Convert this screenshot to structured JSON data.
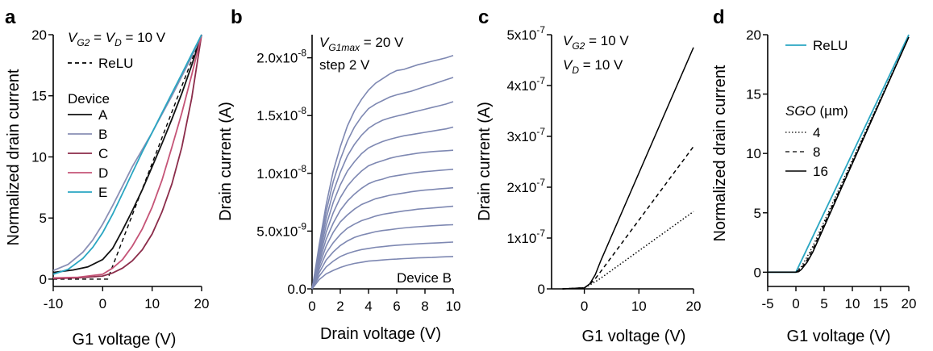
{
  "chart_data": [
    {
      "panel": "a",
      "type": "line",
      "xlabel": "G1 voltage (V)",
      "ylabel": "Normalized drain current",
      "xlim": [
        -10,
        20
      ],
      "ylim": [
        -0.6,
        20
      ],
      "xticks": [
        -10,
        0,
        10,
        20
      ],
      "yticks": [
        0,
        5,
        10,
        15,
        20
      ],
      "xtick_labels": [
        "-10",
        "0",
        "10",
        "20"
      ],
      "ytick_labels": [
        "0",
        "5",
        "10",
        "15",
        "20"
      ],
      "annotation": {
        "sym1": "V",
        "sub1": "G2",
        "eq1": " = ",
        "sym2": "V",
        "sub2": "D",
        "eq2": " = 10 V"
      },
      "legend_title": "Device",
      "grid": false,
      "series": [
        {
          "name": "ReLU",
          "color": "#000000",
          "dash": "5,4",
          "x": [
            -10,
            0,
            1,
            20
          ],
          "y": [
            0,
            0,
            0,
            20
          ]
        },
        {
          "name": "A",
          "color": "#111111",
          "x": [
            -10,
            -6,
            -3,
            0,
            2,
            4,
            6,
            8,
            10,
            12,
            14,
            16,
            18,
            20
          ],
          "y": [
            0.55,
            0.75,
            1.0,
            1.6,
            2.5,
            4.0,
            5.6,
            7.3,
            9.2,
            11.1,
            13.1,
            15.2,
            17.5,
            20
          ]
        },
        {
          "name": "B",
          "color": "#8a8fb5",
          "x": [
            -10,
            -7,
            -4,
            -2,
            0,
            2,
            4,
            6,
            8,
            10,
            12,
            14,
            16,
            18,
            20
          ],
          "y": [
            0.7,
            1.2,
            2.2,
            3.2,
            4.5,
            6.0,
            7.6,
            9.2,
            10.6,
            12.0,
            13.5,
            15.0,
            16.6,
            18.2,
            20
          ]
        },
        {
          "name": "C",
          "color": "#8b2c4a",
          "x": [
            -10,
            -5,
            0,
            2,
            4,
            6,
            8,
            10,
            12,
            14,
            16,
            18,
            20
          ],
          "y": [
            0.05,
            0.1,
            0.25,
            0.5,
            0.9,
            1.5,
            2.4,
            3.7,
            5.5,
            7.8,
            10.8,
            14.8,
            20
          ]
        },
        {
          "name": "D",
          "color": "#c55477",
          "x": [
            -10,
            -5,
            0,
            2,
            4,
            6,
            8,
            10,
            12,
            14,
            16,
            18,
            20
          ],
          "y": [
            0.1,
            0.15,
            0.4,
            0.9,
            1.6,
            2.7,
            4.1,
            5.9,
            8.1,
            10.8,
            13.6,
            16.7,
            20
          ]
        },
        {
          "name": "E",
          "color": "#2aa6c2",
          "x": [
            -10,
            -7,
            -4,
            -2,
            0,
            2,
            4,
            6,
            8,
            10,
            12,
            14,
            16,
            18,
            20
          ],
          "y": [
            0.4,
            0.8,
            1.7,
            2.6,
            3.8,
            5.3,
            7.0,
            8.7,
            10.4,
            12.0,
            13.6,
            15.2,
            16.8,
            18.4,
            20
          ]
        }
      ]
    },
    {
      "panel": "b",
      "type": "line",
      "xlabel": "Drain voltage (V)",
      "ylabel": "Drain current (A)",
      "xlim": [
        0,
        10
      ],
      "ylim": [
        0,
        2.2e-08
      ],
      "xticks": [
        0,
        2,
        4,
        6,
        8,
        10
      ],
      "yticks": [
        0,
        5e-09,
        1e-08,
        1.5e-08,
        2e-08
      ],
      "xtick_labels": [
        "0",
        "2",
        "4",
        "6",
        "8",
        "10"
      ],
      "ytick_labels": [
        "0.0",
        "5.0x10",
        "1.0x10",
        "1.5x10",
        "2.0x10"
      ],
      "ytick_exponents": [
        "",
        "-9",
        "-8",
        "-8",
        "-8"
      ],
      "annotation": {
        "sym": "V",
        "sub": "G1max",
        "rest": " = 20 V",
        "line2": "step 2 V"
      },
      "device_label": "Device B",
      "line_color": "#7e88b2",
      "grid": false,
      "x": [
        0,
        0.25,
        0.5,
        1,
        1.5,
        2,
        2.5,
        3,
        3.5,
        4,
        4.5,
        5,
        5.5,
        6,
        6.5,
        7,
        7.5,
        8,
        8.5,
        9,
        9.5,
        10
      ],
      "series": [
        {
          "values": [
            0,
            4e-10,
            8e-10,
            1.3e-09,
            1.6e-09,
            1.85e-09,
            2.05e-09,
            2.2e-09,
            2.3e-09,
            2.4e-09,
            2.45e-09,
            2.5e-09,
            2.55e-09,
            2.58e-09,
            2.62e-09,
            2.65e-09,
            2.68e-09,
            2.7e-09,
            2.72e-09,
            2.75e-09,
            2.78e-09,
            2.8e-09
          ]
        },
        {
          "values": [
            0,
            5.5e-10,
            1.1e-09,
            1.9e-09,
            2.4e-09,
            2.8e-09,
            3.05e-09,
            3.25e-09,
            3.4e-09,
            3.5e-09,
            3.6e-09,
            3.65e-09,
            3.72e-09,
            3.78e-09,
            3.82e-09,
            3.86e-09,
            3.9e-09,
            3.93e-09,
            3.96e-09,
            3.99e-09,
            4.02e-09,
            4.05e-09
          ]
        },
        {
          "values": [
            0,
            7e-10,
            1.4e-09,
            2.5e-09,
            3.2e-09,
            3.75e-09,
            4.15e-09,
            4.45e-09,
            4.65e-09,
            4.8e-09,
            4.95e-09,
            5.05e-09,
            5.12e-09,
            5.2e-09,
            5.27e-09,
            5.33e-09,
            5.38e-09,
            5.42e-09,
            5.46e-09,
            5.5e-09,
            5.53e-09,
            5.55e-09
          ]
        },
        {
          "values": [
            0,
            8.5e-10,
            1.7e-09,
            3.1e-09,
            4e-09,
            4.7e-09,
            5.25e-09,
            5.6e-09,
            5.9e-09,
            6.1e-09,
            6.3e-09,
            6.45e-09,
            6.55e-09,
            6.65e-09,
            6.75e-09,
            6.82e-09,
            6.9e-09,
            6.95e-09,
            7e-09,
            7.05e-09,
            7.1e-09,
            7.15e-09
          ]
        },
        {
          "values": [
            0,
            1e-09,
            2e-09,
            3.7e-09,
            4.9e-09,
            5.8e-09,
            6.4e-09,
            6.9e-09,
            7.3e-09,
            7.55e-09,
            7.8e-09,
            7.95e-09,
            8.1e-09,
            8.2e-09,
            8.3e-09,
            8.4e-09,
            8.48e-09,
            8.55e-09,
            8.6e-09,
            8.65e-09,
            8.7e-09,
            8.75e-09
          ]
        },
        {
          "values": [
            0,
            1.1e-09,
            2.3e-09,
            4.3e-09,
            5.7e-09,
            6.8e-09,
            7.6e-09,
            8.2e-09,
            8.7e-09,
            9.1e-09,
            9.35e-09,
            9.5e-09,
            9.7e-09,
            9.8e-09,
            9.9e-09,
            1e-08,
            1.008e-08,
            1.015e-08,
            1.02e-08,
            1.025e-08,
            1.03e-08,
            1.035e-08
          ]
        },
        {
          "values": [
            0,
            1.25e-09,
            2.6e-09,
            4.9e-09,
            6.6e-09,
            7.9e-09,
            8.9e-09,
            9.6e-09,
            1.02e-08,
            1.065e-08,
            1.09e-08,
            1.11e-08,
            1.13e-08,
            1.145e-08,
            1.155e-08,
            1.165e-08,
            1.175e-08,
            1.182e-08,
            1.188e-08,
            1.192e-08,
            1.196e-08,
            1.2e-08
          ]
        },
        {
          "values": [
            0,
            1.4e-09,
            2.9e-09,
            5.5e-09,
            7.5e-09,
            9e-09,
            1.02e-08,
            1.1e-08,
            1.17e-08,
            1.22e-08,
            1.25e-08,
            1.275e-08,
            1.295e-08,
            1.31e-08,
            1.325e-08,
            1.335e-08,
            1.345e-08,
            1.355e-08,
            1.365e-08,
            1.375e-08,
            1.385e-08,
            1.4e-08
          ]
        },
        {
          "values": [
            0,
            1.55e-09,
            3.2e-09,
            6.1e-09,
            8.4e-09,
            1.01e-08,
            1.15e-08,
            1.25e-08,
            1.33e-08,
            1.39e-08,
            1.43e-08,
            1.46e-08,
            1.48e-08,
            1.495e-08,
            1.51e-08,
            1.525e-08,
            1.54e-08,
            1.555e-08,
            1.57e-08,
            1.585e-08,
            1.6e-08,
            1.62e-08
          ]
        },
        {
          "values": [
            0,
            1.7e-09,
            3.5e-09,
            6.7e-09,
            9.3e-09,
            1.12e-08,
            1.28e-08,
            1.4e-08,
            1.49e-08,
            1.56e-08,
            1.6e-08,
            1.63e-08,
            1.66e-08,
            1.68e-08,
            1.695e-08,
            1.71e-08,
            1.73e-08,
            1.75e-08,
            1.77e-08,
            1.79e-08,
            1.81e-08,
            1.83e-08
          ]
        },
        {
          "values": [
            0,
            1.85e-09,
            3.8e-09,
            7.3e-09,
            1.02e-08,
            1.23e-08,
            1.41e-08,
            1.54e-08,
            1.64e-08,
            1.72e-08,
            1.78e-08,
            1.82e-08,
            1.86e-08,
            1.89e-08,
            1.9e-08,
            1.92e-08,
            1.94e-08,
            1.955e-08,
            1.97e-08,
            1.985e-08,
            2e-08,
            2.02e-08
          ]
        }
      ]
    },
    {
      "panel": "c",
      "type": "line",
      "xlabel": "G1 voltage (V)",
      "ylabel": "Drain current (A)",
      "xlim": [
        -6,
        20
      ],
      "ylim": [
        0,
        5e-07
      ],
      "xticks": [
        0,
        10,
        20
      ],
      "yticks": [
        0,
        1e-07,
        2e-07,
        3e-07,
        4e-07,
        5e-07
      ],
      "xtick_labels": [
        "0",
        "10",
        "20"
      ],
      "ytick_labels": [
        "0",
        "1x10",
        "2x10",
        "3x10",
        "4x10",
        "5x10"
      ],
      "ytick_exponents": [
        "",
        "-7",
        "-7",
        "-7",
        "-7",
        "-7"
      ],
      "annotation": {
        "sym1": "V",
        "sub1": "G2",
        "rest1": " = 10 V",
        "sym2": "V",
        "sub2": "D",
        "rest2": " = 10 V"
      },
      "grid": false,
      "series": [
        {
          "dash": "",
          "x": [
            -4,
            0,
            1,
            2,
            3,
            20
          ],
          "y": [
            0,
            2e-09,
            1e-08,
            2.8e-08,
            5.5e-08,
            4.75e-07
          ]
        },
        {
          "dash": "5,4",
          "x": [
            -4,
            0,
            1,
            2,
            3,
            20
          ],
          "y": [
            0,
            2e-09,
            9e-09,
            2e-08,
            3.4e-08,
            2.8e-07
          ]
        },
        {
          "dash": "1.5,2.5",
          "x": [
            -4,
            0,
            1,
            2,
            3,
            20
          ],
          "y": [
            0,
            2e-09,
            8e-09,
            1.4e-08,
            2.1e-08,
            1.52e-07
          ]
        }
      ]
    },
    {
      "panel": "d",
      "type": "line",
      "xlabel": "G1 voltage (V)",
      "ylabel": "Normalized drain current",
      "xlim": [
        -5,
        20
      ],
      "ylim": [
        -1.2,
        20
      ],
      "xticks": [
        -5,
        0,
        5,
        10,
        15,
        20
      ],
      "yticks": [
        0,
        5,
        10,
        15,
        20
      ],
      "xtick_labels": [
        "-5",
        "0",
        "5",
        "10",
        "15",
        "20"
      ],
      "ytick_labels": [
        "0",
        "5",
        "10",
        "15",
        "20"
      ],
      "legend_title_italic": "SGO",
      "legend_title_unit": " (µm)",
      "grid": false,
      "series": [
        {
          "name": "ReLU",
          "color": "#2aa6c2",
          "dash": "",
          "width": 1.8,
          "x": [
            -5,
            0,
            20
          ],
          "y": [
            0,
            0,
            20
          ]
        },
        {
          "name": "4",
          "color": "#000000",
          "dash": "1.5,2.5",
          "width": 1.3,
          "x": [
            -5,
            0,
            1,
            2,
            3,
            20
          ],
          "y": [
            0,
            0,
            0.5,
            1.3,
            2.2,
            19.8
          ]
        },
        {
          "name": "8",
          "color": "#000000",
          "dash": "5,4",
          "width": 1.3,
          "x": [
            -5,
            0,
            1,
            2,
            3,
            20
          ],
          "y": [
            0,
            0,
            0.35,
            1.05,
            1.95,
            19.8
          ]
        },
        {
          "name": "16",
          "color": "#000000",
          "dash": "",
          "width": 1.6,
          "x": [
            -5,
            0,
            0.5,
            1,
            2,
            3,
            20
          ],
          "y": [
            0,
            0,
            0.05,
            0.25,
            0.85,
            1.7,
            19.8
          ]
        }
      ]
    }
  ]
}
